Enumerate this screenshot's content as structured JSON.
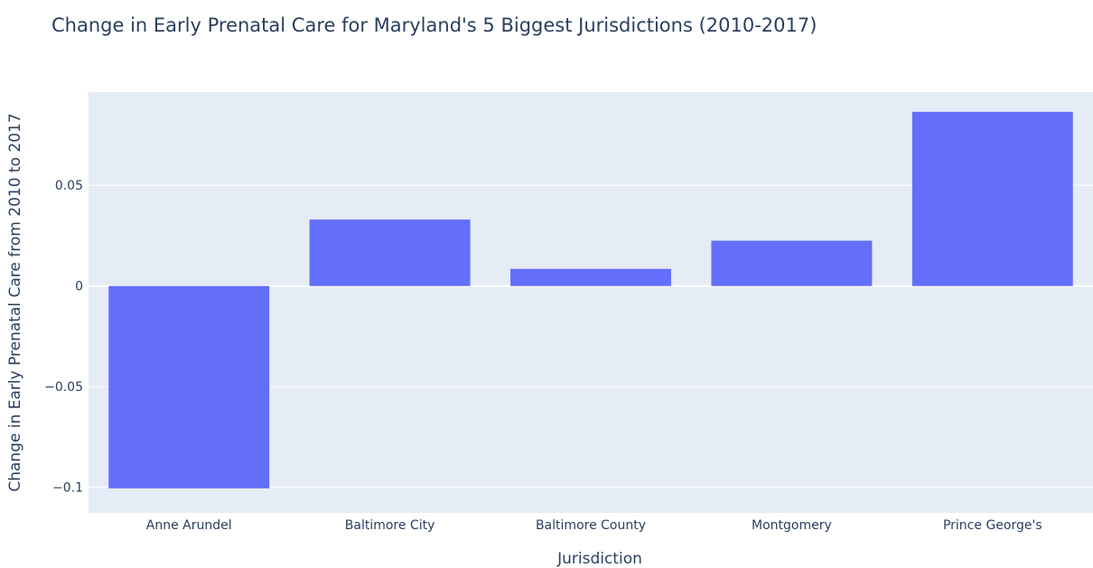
{
  "chart_data": {
    "type": "bar",
    "title": "Change in Early Prenatal Care for Maryland's 5 Biggest Jurisdictions (2010-2017)",
    "xlabel": "Jurisdiction",
    "ylabel": "Change in Early Prenatal Care from 2010 to 2017",
    "categories": [
      "Anne Arundel",
      "Baltimore City",
      "Baltimore County",
      "Montgomery",
      "Prince George's"
    ],
    "values": [
      -0.1005,
      0.033,
      0.0085,
      0.0225,
      0.0865
    ],
    "ylim": [
      -0.1127,
      0.0963
    ],
    "yticks": [
      -0.1,
      -0.05,
      0,
      0.05
    ],
    "ytick_labels": [
      "−0.1",
      "−0.05",
      "0",
      "0.05"
    ],
    "grid": true,
    "colors": {
      "bar": "#636efa",
      "plot_bg": "#e5ecf6",
      "grid": "#ffffff",
      "text": "#2a3f5f"
    }
  }
}
